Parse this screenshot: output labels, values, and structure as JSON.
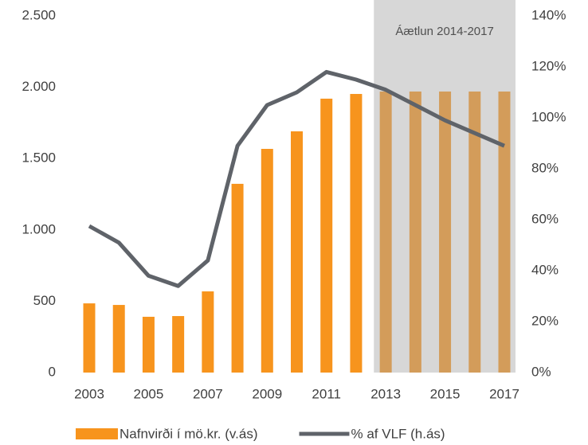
{
  "chart_data": {
    "type": "bar",
    "annotation": "Áætlun 2014-2017",
    "categories": [
      "2003",
      null,
      "2005",
      null,
      "2007",
      null,
      "2009",
      null,
      "2011",
      null,
      "2013",
      null,
      "2015",
      null,
      "2017"
    ],
    "series": [
      {
        "name": "Nafnvirði í mö.kr. (v.ás)",
        "color": "#f7941d",
        "type": "bar",
        "values": [
          485,
          474,
          391,
          396,
          569,
          1323,
          1568,
          1691,
          1920,
          1953,
          1970,
          1970,
          1970,
          1970,
          1970
        ]
      },
      {
        "name": "% af VLF (h.ás)",
        "color": "#5f6369",
        "type": "line",
        "axis": "y2",
        "values": [
          57.5,
          51,
          38,
          34,
          44,
          89,
          105,
          110,
          118,
          115,
          111,
          105,
          99,
          94,
          89
        ]
      }
    ],
    "ylim": [
      0,
      2500
    ],
    "yticks": [
      0,
      500,
      {
        "value": 1000,
        "label": "1.000"
      },
      {
        "value": 1500,
        "label": "1.500"
      },
      {
        "value": 2000,
        "label": "2.000"
      },
      {
        "value": 2500,
        "label": "2.500"
      }
    ],
    "y2lim": [
      0,
      140
    ],
    "y2ticks": [
      {
        "value": 0,
        "label": "0%"
      },
      {
        "value": 20,
        "label": "20%"
      },
      {
        "value": 40,
        "label": "40%"
      },
      {
        "value": 60,
        "label": "60%"
      },
      {
        "value": 80,
        "label": "80%"
      },
      {
        "value": 100,
        "label": "100%"
      },
      {
        "value": 120,
        "label": "120%"
      },
      {
        "value": 140,
        "label": "140%"
      }
    ],
    "legend": "bottom"
  }
}
